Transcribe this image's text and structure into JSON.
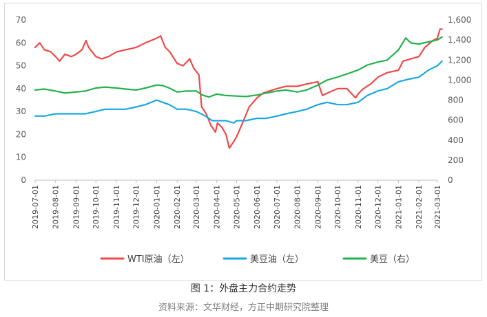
{
  "caption": "图 1：外盘主力合约走势",
  "source": "资料来源：文华财经，方正中期研究院整理",
  "chart_data": {
    "type": "line",
    "title": "",
    "xlabel": "",
    "ylabel": "",
    "legend_position": "bottom",
    "grid": false,
    "left_axis": {
      "ylim": [
        0,
        70
      ],
      "ticks": [
        "0",
        "10",
        "20",
        "30",
        "40",
        "50",
        "60",
        "70"
      ]
    },
    "right_axis": {
      "ylim": [
        0,
        1600
      ],
      "ticks": [
        "0",
        "200",
        "400",
        "600",
        "800",
        "1,000",
        "1,200",
        "1,400",
        "1,600"
      ]
    },
    "x_ticks": [
      "2019-07-01",
      "2019-08-01",
      "2019-09-01",
      "2019-10-01",
      "2019-11-01",
      "2019-12-01",
      "2020-01-01",
      "2020-02-01",
      "2020-03-01",
      "2020-04-01",
      "2020-05-01",
      "2020-06-01",
      "2020-07-01",
      "2020-08-01",
      "2020-09-01",
      "2020-10-01",
      "2020-11-01",
      "2020-12-01",
      "2021-01-01",
      "2021-02-01",
      "2021-03-01"
    ],
    "series": [
      {
        "name": "WTI原油（左）",
        "axis": "left",
        "color": "#f04848",
        "points": [
          [
            "2019-07-01",
            58
          ],
          [
            "2019-07-08",
            60
          ],
          [
            "2019-07-15",
            57
          ],
          [
            "2019-07-25",
            56
          ],
          [
            "2019-08-01",
            54
          ],
          [
            "2019-08-07",
            52
          ],
          [
            "2019-08-15",
            55
          ],
          [
            "2019-08-25",
            54
          ],
          [
            "2019-09-01",
            55
          ],
          [
            "2019-09-10",
            57
          ],
          [
            "2019-09-16",
            61
          ],
          [
            "2019-09-20",
            58
          ],
          [
            "2019-10-01",
            54
          ],
          [
            "2019-10-10",
            53
          ],
          [
            "2019-10-20",
            54
          ],
          [
            "2019-11-01",
            56
          ],
          [
            "2019-11-15",
            57
          ],
          [
            "2019-12-01",
            58
          ],
          [
            "2019-12-15",
            60
          ],
          [
            "2020-01-01",
            62
          ],
          [
            "2020-01-07",
            63
          ],
          [
            "2020-01-14",
            58
          ],
          [
            "2020-01-21",
            56
          ],
          [
            "2020-02-01",
            51
          ],
          [
            "2020-02-10",
            50
          ],
          [
            "2020-02-20",
            53
          ],
          [
            "2020-02-26",
            49
          ],
          [
            "2020-03-05",
            46
          ],
          [
            "2020-03-09",
            32
          ],
          [
            "2020-03-16",
            29
          ],
          [
            "2020-03-23",
            24
          ],
          [
            "2020-03-30",
            21
          ],
          [
            "2020-04-02",
            25
          ],
          [
            "2020-04-09",
            23
          ],
          [
            "2020-04-15",
            20
          ],
          [
            "2020-04-20",
            14
          ],
          [
            "2020-04-27",
            17
          ],
          [
            "2020-05-01",
            19
          ],
          [
            "2020-05-10",
            25
          ],
          [
            "2020-05-20",
            32
          ],
          [
            "2020-06-01",
            36
          ],
          [
            "2020-06-10",
            38
          ],
          [
            "2020-06-20",
            39
          ],
          [
            "2020-07-01",
            40
          ],
          [
            "2020-07-15",
            41
          ],
          [
            "2020-08-01",
            41
          ],
          [
            "2020-08-15",
            42
          ],
          [
            "2020-09-01",
            43
          ],
          [
            "2020-09-08",
            37
          ],
          [
            "2020-09-15",
            38
          ],
          [
            "2020-10-01",
            40
          ],
          [
            "2020-10-15",
            40
          ],
          [
            "2020-10-28",
            36
          ],
          [
            "2020-11-02",
            38
          ],
          [
            "2020-11-09",
            40
          ],
          [
            "2020-11-20",
            42
          ],
          [
            "2020-12-01",
            45
          ],
          [
            "2020-12-15",
            47
          ],
          [
            "2021-01-01",
            48
          ],
          [
            "2021-01-08",
            52
          ],
          [
            "2021-01-20",
            53
          ],
          [
            "2021-02-01",
            54
          ],
          [
            "2021-02-10",
            58
          ],
          [
            "2021-02-22",
            61
          ],
          [
            "2021-03-01",
            62
          ],
          [
            "2021-03-05",
            66
          ],
          [
            "2021-03-08",
            66
          ]
        ]
      },
      {
        "name": "美豆油（左）",
        "axis": "left",
        "color": "#1aa7e0",
        "points": [
          [
            "2019-07-01",
            28
          ],
          [
            "2019-07-15",
            28
          ],
          [
            "2019-08-01",
            29
          ],
          [
            "2019-08-15",
            29
          ],
          [
            "2019-09-01",
            29
          ],
          [
            "2019-09-15",
            29
          ],
          [
            "2019-10-01",
            30
          ],
          [
            "2019-10-15",
            31
          ],
          [
            "2019-11-01",
            31
          ],
          [
            "2019-11-15",
            31
          ],
          [
            "2019-12-01",
            32
          ],
          [
            "2019-12-15",
            33
          ],
          [
            "2020-01-01",
            35
          ],
          [
            "2020-01-10",
            34
          ],
          [
            "2020-01-20",
            33
          ],
          [
            "2020-02-01",
            31
          ],
          [
            "2020-02-15",
            31
          ],
          [
            "2020-03-01",
            30
          ],
          [
            "2020-03-15",
            28
          ],
          [
            "2020-03-25",
            26
          ],
          [
            "2020-04-01",
            26
          ],
          [
            "2020-04-15",
            26
          ],
          [
            "2020-04-27",
            25
          ],
          [
            "2020-05-01",
            26
          ],
          [
            "2020-05-15",
            26
          ],
          [
            "2020-06-01",
            27
          ],
          [
            "2020-06-15",
            27
          ],
          [
            "2020-07-01",
            28
          ],
          [
            "2020-07-15",
            29
          ],
          [
            "2020-08-01",
            30
          ],
          [
            "2020-08-15",
            31
          ],
          [
            "2020-09-01",
            33
          ],
          [
            "2020-09-15",
            34
          ],
          [
            "2020-10-01",
            33
          ],
          [
            "2020-10-15",
            33
          ],
          [
            "2020-11-01",
            34
          ],
          [
            "2020-11-15",
            37
          ],
          [
            "2020-12-01",
            39
          ],
          [
            "2020-12-15",
            40
          ],
          [
            "2021-01-01",
            43
          ],
          [
            "2021-01-15",
            44
          ],
          [
            "2021-02-01",
            45
          ],
          [
            "2021-02-15",
            48
          ],
          [
            "2021-03-01",
            50
          ],
          [
            "2021-03-08",
            52
          ]
        ]
      },
      {
        "name": "美豆（右）",
        "axis": "right",
        "color": "#22b14c",
        "points": [
          [
            "2019-07-01",
            900
          ],
          [
            "2019-07-15",
            910
          ],
          [
            "2019-08-01",
            890
          ],
          [
            "2019-08-15",
            870
          ],
          [
            "2019-09-01",
            880
          ],
          [
            "2019-09-15",
            890
          ],
          [
            "2019-10-01",
            920
          ],
          [
            "2019-10-15",
            930
          ],
          [
            "2019-11-01",
            920
          ],
          [
            "2019-11-15",
            910
          ],
          [
            "2019-12-01",
            900
          ],
          [
            "2019-12-15",
            920
          ],
          [
            "2020-01-01",
            950
          ],
          [
            "2020-01-10",
            945
          ],
          [
            "2020-01-20",
            920
          ],
          [
            "2020-02-01",
            880
          ],
          [
            "2020-02-15",
            890
          ],
          [
            "2020-03-01",
            890
          ],
          [
            "2020-03-10",
            850
          ],
          [
            "2020-03-20",
            830
          ],
          [
            "2020-04-01",
            860
          ],
          [
            "2020-04-15",
            845
          ],
          [
            "2020-05-01",
            840
          ],
          [
            "2020-05-15",
            835
          ],
          [
            "2020-06-01",
            850
          ],
          [
            "2020-06-15",
            870
          ],
          [
            "2020-07-01",
            890
          ],
          [
            "2020-07-15",
            900
          ],
          [
            "2020-08-01",
            880
          ],
          [
            "2020-08-15",
            900
          ],
          [
            "2020-09-01",
            950
          ],
          [
            "2020-09-15",
            1000
          ],
          [
            "2020-10-01",
            1030
          ],
          [
            "2020-10-15",
            1060
          ],
          [
            "2020-11-01",
            1100
          ],
          [
            "2020-11-15",
            1150
          ],
          [
            "2020-12-01",
            1180
          ],
          [
            "2020-12-15",
            1200
          ],
          [
            "2021-01-01",
            1300
          ],
          [
            "2021-01-12",
            1420
          ],
          [
            "2021-01-20",
            1370
          ],
          [
            "2021-02-01",
            1360
          ],
          [
            "2021-02-15",
            1380
          ],
          [
            "2021-03-01",
            1400
          ],
          [
            "2021-03-08",
            1430
          ]
        ]
      }
    ]
  }
}
